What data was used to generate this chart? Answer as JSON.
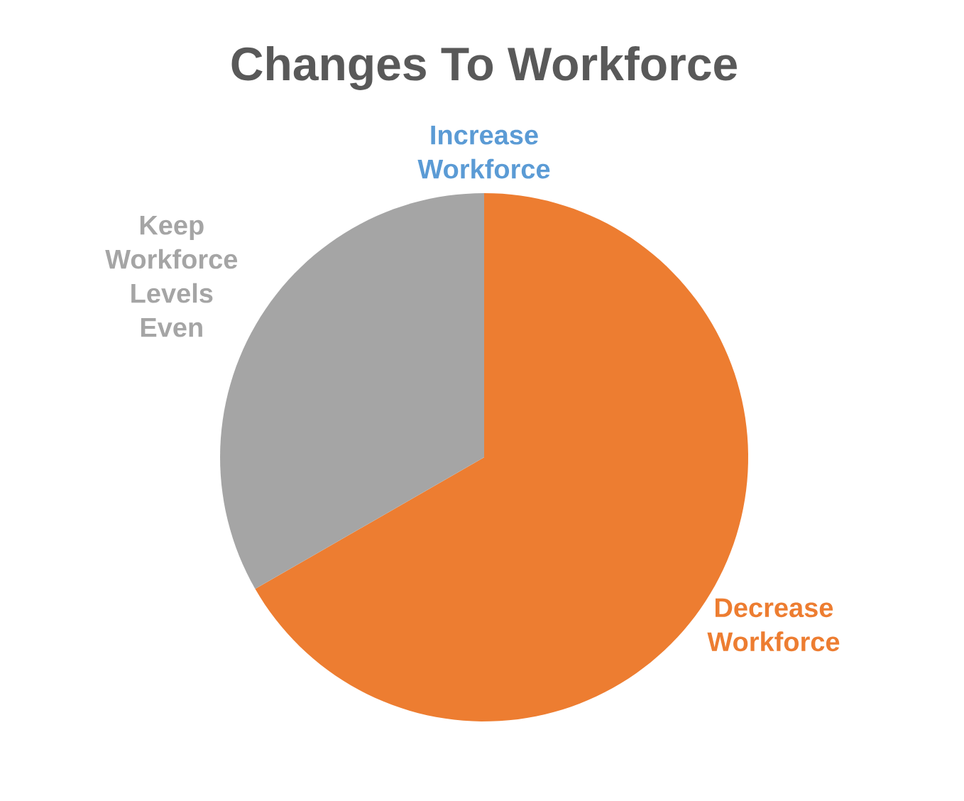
{
  "chart_data": {
    "type": "pie",
    "title": "Changes To Workforce",
    "categories": [
      "Increase Workforce",
      "Decrease Workforce",
      "Keep Workforce Levels Even"
    ],
    "values": [
      0,
      66.7,
      33.3
    ],
    "colors": [
      "#5b9bd5",
      "#ed7d31",
      "#a5a5a5"
    ]
  }
}
